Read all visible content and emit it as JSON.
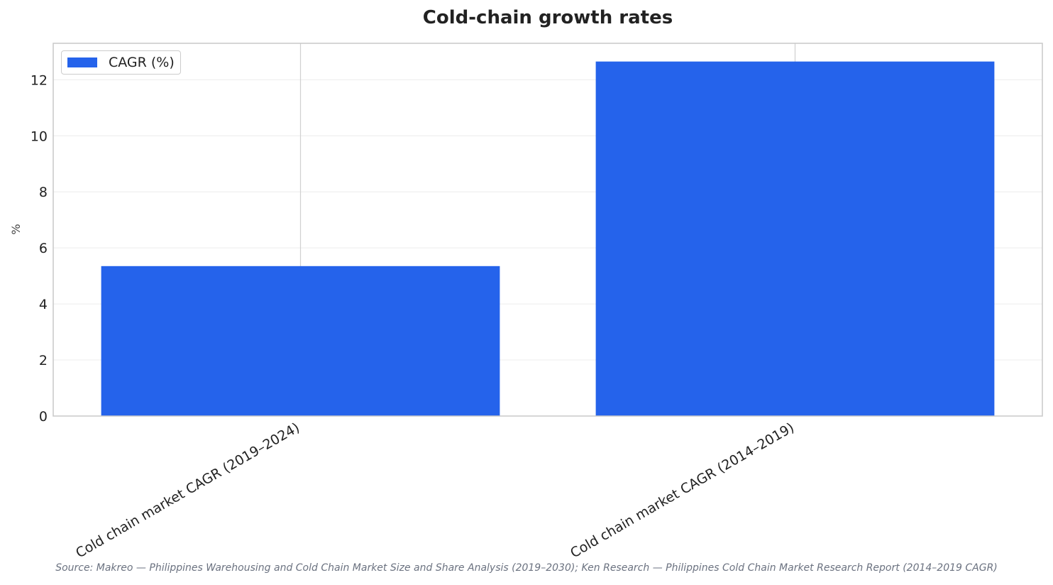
{
  "chart_data": {
    "type": "bar",
    "title": "Cold-chain growth rates",
    "categories": [
      "Cold chain market CAGR (2019–2024)",
      "Cold chain market CAGR (2014–2019)"
    ],
    "series": [
      {
        "name": "CAGR (%)",
        "values": [
          5.35,
          12.65
        ],
        "color": "#2563eb"
      }
    ],
    "xlabel": "",
    "ylabel": "%",
    "ylim": [
      0,
      13.3
    ],
    "yticks": [
      0,
      2,
      4,
      6,
      8,
      10,
      12
    ],
    "grid": true,
    "legend_position": "top-left"
  },
  "source": "Source: Makreo — Philippines Warehousing and Cold Chain Market Size and Share Analysis (2019–2030); Ken Research — Philippines Cold Chain Market Research Report (2014–2019 CAGR)"
}
